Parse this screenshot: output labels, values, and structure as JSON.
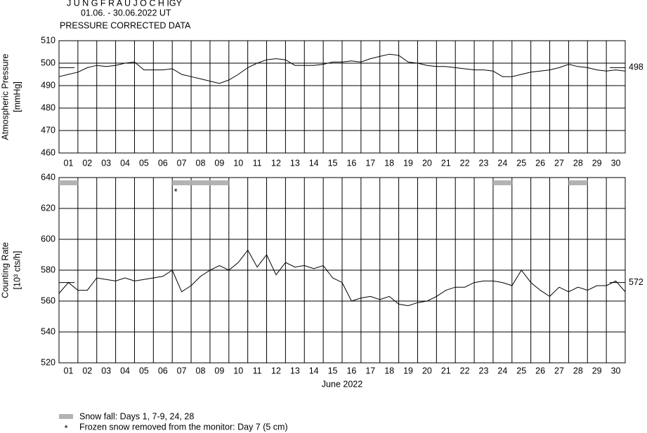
{
  "chart_data": [
    {
      "type": "line",
      "title": "J U N G F R A U J O C H  IGY",
      "subtitle": "01.06. - 30.06.2022  UT",
      "heading": "PRESSURE CORRECTED DATA",
      "ylabel": "Atmospheric Pressure",
      "yunit": "[mmHg]",
      "categories": [
        "01",
        "02",
        "03",
        "04",
        "05",
        "06",
        "07",
        "08",
        "09",
        "10",
        "11",
        "12",
        "13",
        "14",
        "15",
        "16",
        "17",
        "18",
        "19",
        "20",
        "21",
        "22",
        "23",
        "24",
        "25",
        "26",
        "27",
        "28",
        "29",
        "30"
      ],
      "xlim": [
        0,
        30
      ],
      "ylim": [
        460,
        510
      ],
      "yticks": [
        460,
        470,
        480,
        490,
        500,
        510
      ],
      "grid": true,
      "color": "#000000",
      "reference_line": 498,
      "x": [
        0,
        0.5,
        1,
        1.5,
        2,
        2.5,
        3,
        3.5,
        4,
        4.5,
        5,
        5.5,
        6,
        6.5,
        7,
        7.5,
        8,
        8.5,
        9,
        9.5,
        10,
        10.5,
        11,
        11.5,
        12,
        12.5,
        13,
        13.5,
        14,
        14.5,
        15,
        15.5,
        16,
        16.5,
        17,
        17.5,
        18,
        18.5,
        19,
        19.5,
        20,
        20.5,
        21,
        21.5,
        22,
        22.5,
        23,
        23.5,
        24,
        24.5,
        25,
        25.5,
        26,
        26.5,
        27,
        27.5,
        28,
        28.5,
        29,
        29.5,
        30
      ],
      "values": [
        494,
        495,
        496,
        498,
        499,
        498.5,
        499,
        500,
        500.5,
        497,
        497,
        497,
        497.5,
        495,
        494,
        493,
        492,
        491,
        492.5,
        495,
        498,
        500,
        501.5,
        502,
        501.5,
        499,
        499,
        499,
        499.5,
        500.5,
        500.5,
        501,
        500.5,
        502,
        503,
        504,
        503.5,
        500.5,
        500,
        499,
        498.5,
        498.5,
        498,
        497.5,
        497,
        497,
        496.5,
        494,
        494,
        495,
        496,
        496.5,
        497,
        498,
        499.5,
        498.5,
        498,
        497,
        496.5,
        497,
        496.5
      ]
    },
    {
      "type": "line",
      "ylabel": "Counting Rate",
      "yunit": "[10³ cts/h]",
      "xlabel": "June 2022",
      "categories": [
        "01",
        "02",
        "03",
        "04",
        "05",
        "06",
        "07",
        "08",
        "09",
        "10",
        "11",
        "12",
        "13",
        "14",
        "15",
        "16",
        "17",
        "18",
        "19",
        "20",
        "21",
        "22",
        "23",
        "24",
        "25",
        "26",
        "27",
        "28",
        "29",
        "30"
      ],
      "xlim": [
        0,
        30
      ],
      "ylim": [
        520,
        640
      ],
      "yticks": [
        520,
        540,
        560,
        580,
        600,
        620,
        640
      ],
      "grid": true,
      "color": "#000000",
      "reference_line": 572,
      "snow_days": [
        1,
        7,
        8,
        9,
        24,
        28
      ],
      "snow_color": "#b3b3b3",
      "snow_label": "Snow fall: Days 1, 7-9, 24, 28",
      "marker_day": 7,
      "marker_symbol": "*",
      "marker_label": "Frozen snow removed from the monitor: Day 7 (5 cm)",
      "x": [
        0,
        0.5,
        1,
        1.5,
        2,
        2.5,
        3,
        3.5,
        4,
        4.5,
        5,
        5.5,
        6,
        6.5,
        7,
        7.5,
        8,
        8.5,
        9,
        9.5,
        10,
        10.5,
        11,
        11.5,
        12,
        12.5,
        13,
        13.5,
        14,
        14.5,
        15,
        15.5,
        16,
        16.5,
        17,
        17.5,
        18,
        18.5,
        19,
        19.5,
        20,
        20.5,
        21,
        21.5,
        22,
        22.5,
        23,
        23.5,
        24,
        24.5,
        25,
        25.5,
        26,
        26.5,
        27,
        27.5,
        28,
        28.5,
        29,
        29.5,
        30
      ],
      "values": [
        565,
        572,
        567,
        567,
        575,
        574,
        573,
        575,
        573,
        574,
        575,
        576,
        580,
        566,
        570,
        576,
        580,
        583,
        580,
        585,
        593,
        582,
        590,
        577,
        585,
        582,
        583,
        581,
        583,
        575,
        572,
        560,
        562,
        563,
        561,
        563,
        558,
        557,
        559,
        560,
        563,
        567,
        569,
        569,
        572,
        573,
        573,
        572,
        570,
        580,
        572,
        567,
        563,
        569,
        566,
        569,
        567,
        570,
        570,
        573,
        566
      ]
    }
  ]
}
